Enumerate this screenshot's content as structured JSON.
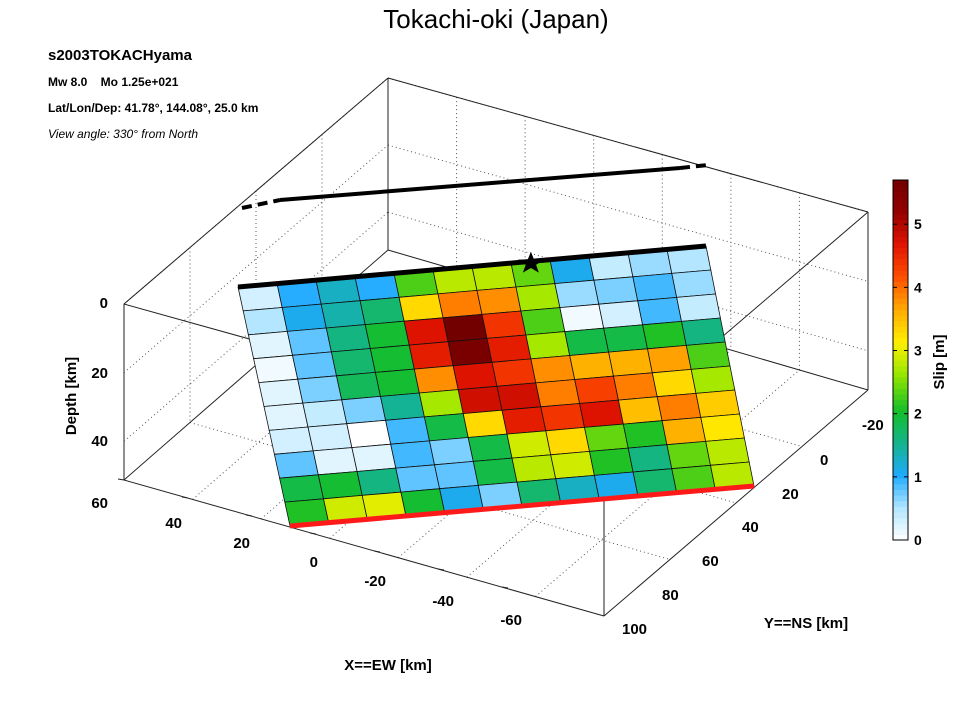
{
  "chart_data": {
    "type": "heatmap",
    "title": "Tokachi-oki (Japan)",
    "event_id": "s2003TOKACHyama",
    "magnitude_line": "Mw 8.0    Mo 1.25e+021",
    "location_line": "Lat/Lon/Dep: 41.78°, 144.08°, 25.0 km",
    "view_angle_line": "View angle: 330° from North",
    "xlabel": "X==EW [km]",
    "ylabel": "Y==NS [km]",
    "zlabel": "Depth [km]",
    "colorbar_label": "Slip [m]",
    "x_ticks": [
      "40",
      "20",
      "0",
      "-20",
      "-40",
      "-60"
    ],
    "y_ticks": [
      "-20",
      "0",
      "20",
      "40",
      "60",
      "80",
      "100"
    ],
    "z_ticks": [
      "0",
      "20",
      "40",
      "60"
    ],
    "colorbar_ticks": [
      "0",
      "1",
      "2",
      "3",
      "4",
      "5"
    ],
    "clim": [
      0,
      5.7
    ],
    "hypocenter": {
      "row": 0,
      "col": 7
    },
    "slip_rows": [
      [
        0.3,
        1.0,
        1.3,
        1.0,
        2.3,
        2.8,
        2.8,
        2.4,
        1.1,
        0.4,
        0.6,
        0.5
      ],
      [
        0.5,
        1.1,
        1.4,
        1.7,
        3.3,
        3.9,
        3.8,
        2.7,
        0.6,
        0.7,
        0.9,
        0.6
      ],
      [
        0.2,
        0.8,
        1.6,
        2.0,
        4.7,
        5.7,
        4.4,
        2.3,
        0.1,
        0.3,
        0.9,
        0.4
      ],
      [
        0.1,
        0.8,
        1.7,
        2.0,
        4.6,
        5.6,
        4.6,
        2.7,
        1.9,
        1.9,
        2.1,
        1.6
      ],
      [
        0.2,
        0.7,
        1.8,
        2.0,
        3.8,
        4.7,
        4.4,
        3.8,
        3.6,
        3.6,
        3.7,
        2.3
      ],
      [
        0.2,
        0.4,
        0.7,
        1.5,
        2.7,
        4.8,
        4.8,
        3.9,
        4.3,
        3.9,
        3.3,
        2.7
      ],
      [
        0.3,
        0.3,
        0.0,
        0.9,
        1.9,
        3.3,
        4.6,
        4.4,
        4.7,
        3.5,
        3.9,
        3.4
      ],
      [
        0.8,
        0.2,
        0.2,
        0.9,
        0.7,
        1.9,
        2.9,
        3.3,
        2.4,
        2.1,
        3.6,
        3.2
      ],
      [
        1.9,
        2.0,
        1.6,
        0.8,
        0.8,
        1.9,
        2.8,
        2.9,
        2.1,
        1.6,
        2.4,
        2.8
      ],
      [
        2.1,
        2.9,
        3.0,
        2.0,
        1.1,
        0.7,
        1.7,
        1.3,
        1.1,
        1.7,
        2.3,
        2.8
      ]
    ]
  }
}
